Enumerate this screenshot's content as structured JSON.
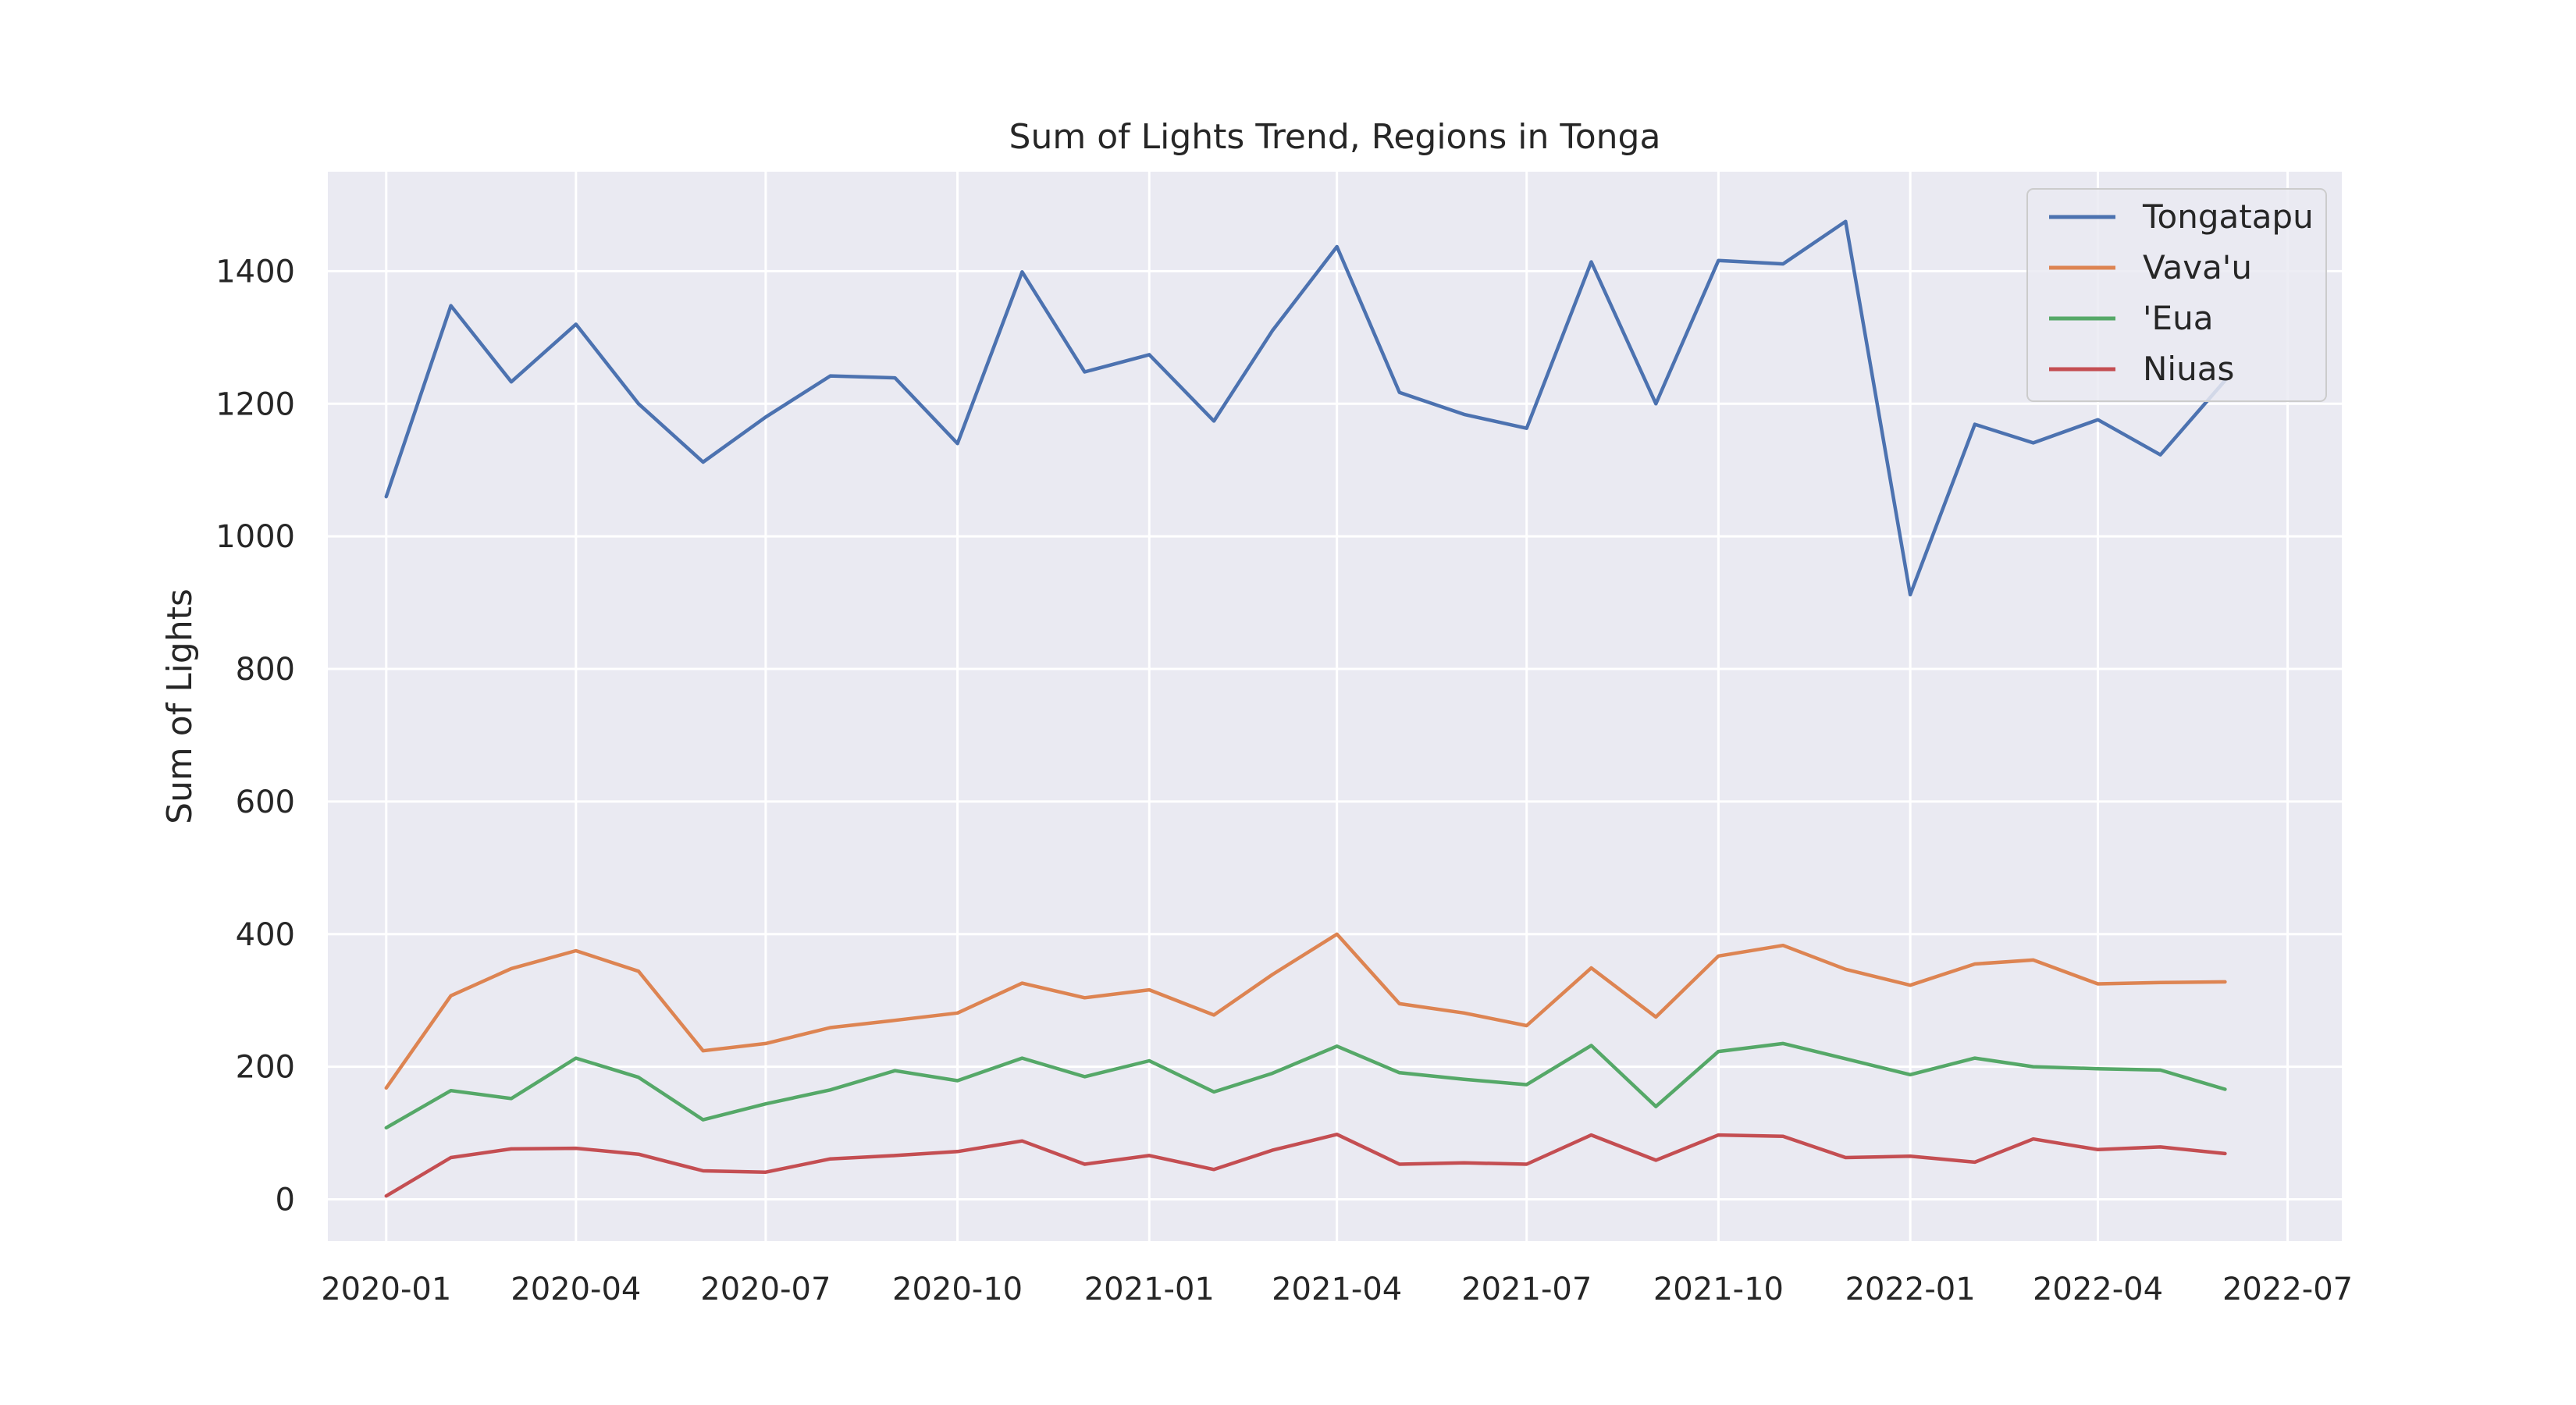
{
  "chart_data": {
    "type": "line",
    "title": "Sum of Lights Trend, Regions in Tonga",
    "xlabel": "",
    "ylabel": "Sum of Lights",
    "x": [
      "2020-01",
      "2020-02",
      "2020-03",
      "2020-04",
      "2020-05",
      "2020-06",
      "2020-07",
      "2020-08",
      "2020-09",
      "2020-10",
      "2020-11",
      "2020-12",
      "2021-01",
      "2021-02",
      "2021-03",
      "2021-04",
      "2021-05",
      "2021-06",
      "2021-07",
      "2021-08",
      "2021-09",
      "2021-10",
      "2021-11",
      "2021-12",
      "2022-01",
      "2022-02",
      "2022-03",
      "2022-04",
      "2022-05",
      "2022-06"
    ],
    "xticks": [
      "2020-01",
      "2020-04",
      "2020-07",
      "2020-10",
      "2021-01",
      "2021-04",
      "2021-07",
      "2021-10",
      "2022-01",
      "2022-04",
      "2022-07"
    ],
    "xlim": [
      "2019-12-04",
      "2022-07-27"
    ],
    "yticks": [
      0,
      200,
      400,
      600,
      800,
      1000,
      1200,
      1400
    ],
    "ylim": [
      -63,
      1550
    ],
    "grid": true,
    "legend_position": "top-right",
    "background": "#eaeaf2",
    "series": [
      {
        "name": "Tongatapu",
        "color": "#4c72b0",
        "values": [
          1060,
          1348,
          1233,
          1320,
          1200,
          1112,
          1180,
          1242,
          1239,
          1140,
          1399,
          1248,
          1274,
          1174,
          1310,
          1437,
          1217,
          1184,
          1163,
          1414,
          1200,
          1416,
          1411,
          1475,
          912,
          1169,
          1141,
          1176,
          1123,
          1235
        ]
      },
      {
        "name": "Vava'u",
        "color": "#dd8452",
        "values": [
          168,
          307,
          348,
          375,
          344,
          224,
          235,
          259,
          270,
          281,
          326,
          304,
          316,
          278,
          339,
          400,
          295,
          281,
          262,
          349,
          275,
          367,
          383,
          347,
          323,
          355,
          361,
          325,
          327,
          328
        ]
      },
      {
        "name": "'Eua",
        "color": "#55a868",
        "values": [
          108,
          164,
          152,
          213,
          184,
          120,
          144,
          165,
          194,
          179,
          213,
          185,
          209,
          162,
          190,
          231,
          191,
          181,
          173,
          232,
          140,
          223,
          235,
          212,
          188,
          213,
          200,
          197,
          195,
          166
        ]
      },
      {
        "name": "Niuas",
        "color": "#c44e52",
        "values": [
          5,
          63,
          76,
          77,
          68,
          43,
          41,
          61,
          66,
          72,
          88,
          53,
          66,
          45,
          74,
          98,
          53,
          55,
          53,
          97,
          59,
          97,
          95,
          63,
          65,
          56,
          91,
          75,
          79,
          69
        ]
      }
    ]
  }
}
